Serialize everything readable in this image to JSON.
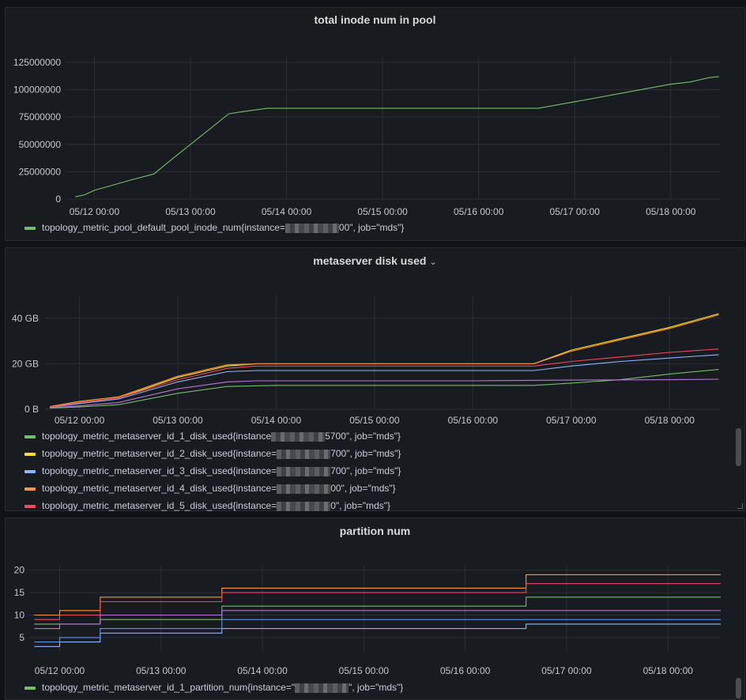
{
  "panels": [
    {
      "title": "total inode num in pool",
      "legend": [
        {
          "pre": "topology_metric_pool_default_pool_inode_num{instance=",
          "post": "00\", job=\"mds\"}",
          "color": "#73bf69"
        }
      ]
    },
    {
      "title": "metaserver disk used",
      "caret": "⌄",
      "legend": [
        {
          "pre": "topology_metric_metaserver_id_1_disk_used{instance",
          "post": "5700\", job=\"mds\"}",
          "color": "#73bf69"
        },
        {
          "pre": "topology_metric_metaserver_id_2_disk_used{instance=",
          "post": "700\", job=\"mds\"}",
          "color": "#fade2a"
        },
        {
          "pre": "topology_metric_metaserver_id_3_disk_used{instance=",
          "post": "700\", job=\"mds\"}",
          "color": "#8ab8ff"
        },
        {
          "pre": "topology_metric_metaserver_id_4_disk_used{instance=",
          "post": "00\", job=\"mds\"}",
          "color": "#ff9830"
        },
        {
          "pre": "topology_metric_metaserver_id_5_disk_used{instance=",
          "post": "0\", job=\"mds\"}",
          "color": "#f2495c"
        }
      ]
    },
    {
      "title": "partition num",
      "legend": [
        {
          "pre": "topology_metric_metaserver_id_1_partition_num{instance=\"",
          "post": "\", job=\"mds\"}",
          "color": "#73bf69"
        }
      ]
    }
  ],
  "chart_data": [
    {
      "type": "line",
      "title": "total inode num in pool",
      "x_ticks": [
        "05/12 00:00",
        "05/13 00:00",
        "05/14 00:00",
        "05/15 00:00",
        "05/16 00:00",
        "05/17 00:00",
        "05/18 00:00"
      ],
      "y_ticks": [
        "0",
        "25000000",
        "50000000",
        "75000000",
        "100000000",
        "125000000"
      ],
      "xlim": [
        -0.3,
        6.52
      ],
      "ylim": [
        0,
        130000000
      ],
      "series": [
        {
          "color": "#73bf69",
          "x": [
            -0.2,
            -0.1,
            0.0,
            0.2,
            0.4,
            0.62,
            0.8,
            1.0,
            1.2,
            1.4,
            1.55,
            1.8,
            2.5,
            3.0,
            4.0,
            4.0,
            4.62,
            5.0,
            5.5,
            6.0,
            6.2,
            6.4,
            6.5
          ],
          "y": [
            2000000,
            4000000,
            8000000,
            13000000,
            18000000,
            23000000,
            36000000,
            50000000,
            64000000,
            78000000,
            80000000,
            83000000,
            83000000,
            83000000,
            83000000,
            83000000,
            83000000,
            89000000,
            97000000,
            105000000,
            107000000,
            111000000,
            112000000
          ]
        }
      ]
    },
    {
      "type": "line",
      "title": "metaserver disk used",
      "x_ticks": [
        "05/12 00:00",
        "05/13 00:00",
        "05/14 00:00",
        "05/15 00:00",
        "05/16 00:00",
        "05/17 00:00",
        "05/18 00:00"
      ],
      "y_ticks": [
        "0 B",
        "20 GB",
        "40 GB"
      ],
      "xlim": [
        -0.35,
        6.52
      ],
      "ylim": [
        0,
        50
      ],
      "series": [
        {
          "name": "topology_metric_metaserver_id_1_disk_used",
          "color": "#73bf69",
          "x": [
            -0.3,
            0.0,
            0.4,
            1.0,
            1.5,
            2.0,
            3.0,
            4.0,
            4.62,
            5.0,
            5.5,
            6.0,
            6.5
          ],
          "y": [
            0.5,
            1.0,
            2.0,
            7.0,
            10.0,
            10.5,
            10.5,
            10.5,
            10.5,
            11.5,
            13.0,
            15.5,
            17.5
          ]
        },
        {
          "name": "topology_metric_metaserver_id_2_disk_used",
          "color": "#fade2a",
          "x": [
            -0.3,
            0.0,
            0.4,
            1.0,
            1.5,
            1.8,
            2.0,
            3.0,
            4.0,
            4.62,
            5.0,
            5.5,
            6.0,
            6.5
          ],
          "y": [
            1.0,
            3.0,
            5.0,
            14.0,
            19.0,
            20.0,
            20.0,
            20.0,
            20.0,
            20.0,
            26.0,
            31.0,
            36.0,
            42.0
          ]
        },
        {
          "name": "topology_metric_metaserver_id_3_disk_used",
          "color": "#8ab8ff",
          "x": [
            -0.3,
            0.0,
            0.4,
            1.0,
            1.5,
            1.8,
            2.0,
            3.0,
            4.0,
            4.62,
            5.0,
            5.5,
            6.0,
            6.5
          ],
          "y": [
            0.8,
            2.5,
            4.5,
            12.0,
            16.5,
            17.0,
            17.0,
            17.0,
            17.0,
            17.0,
            19.0,
            21.0,
            22.5,
            24.0
          ]
        },
        {
          "name": "topology_metric_metaserver_id_4_disk_used",
          "color": "#ff9830",
          "x": [
            -0.3,
            0.0,
            0.4,
            1.0,
            1.5,
            1.8,
            2.0,
            3.0,
            4.0,
            4.62,
            5.0,
            5.5,
            6.0,
            6.5
          ],
          "y": [
            1.2,
            3.5,
            5.5,
            14.5,
            19.5,
            20.0,
            20.0,
            20.0,
            20.0,
            20.0,
            25.5,
            30.5,
            35.5,
            41.5
          ]
        },
        {
          "name": "topology_metric_metaserver_id_5_disk_used",
          "color": "#f2495c",
          "x": [
            -0.3,
            0.0,
            0.4,
            1.0,
            1.5,
            1.8,
            2.0,
            3.0,
            4.0,
            4.62,
            5.0,
            5.5,
            6.0,
            6.5
          ],
          "y": [
            0.9,
            3.0,
            5.0,
            13.0,
            18.0,
            19.0,
            19.0,
            19.0,
            19.0,
            19.0,
            21.0,
            23.0,
            25.0,
            26.5
          ]
        },
        {
          "name": "",
          "color": "#b877d9",
          "x": [
            -0.3,
            0.0,
            0.4,
            1.0,
            1.5,
            1.8,
            2.0,
            3.0,
            4.0,
            5.0,
            6.0,
            6.5
          ],
          "y": [
            0.6,
            1.5,
            3.0,
            9.0,
            12.0,
            12.5,
            12.5,
            12.5,
            12.5,
            12.8,
            13.0,
            13.2
          ]
        }
      ]
    },
    {
      "type": "line",
      "title": "partition num",
      "x_ticks": [
        "05/12 00:00",
        "05/13 00:00",
        "05/14 00:00",
        "05/15 00:00",
        "05/16 00:00",
        "05/17 00:00",
        "05/18 00:00"
      ],
      "y_ticks": [
        "5",
        "10",
        "15",
        "20"
      ],
      "xlim": [
        -0.3,
        6.52
      ],
      "ylim": [
        2,
        21
      ],
      "step": true,
      "series": [
        {
          "color": "#73bf69",
          "x": [
            -0.25,
            0.0,
            0.4,
            1.6,
            4.6,
            6.5
          ],
          "y": [
            8,
            8,
            9,
            12,
            14,
            14
          ]
        },
        {
          "color": "#ff9830",
          "x": [
            -0.25,
            0.0,
            0.4,
            1.6,
            4.6,
            6.5
          ],
          "y": [
            10,
            11,
            14,
            16,
            19,
            19
          ]
        },
        {
          "color": "#f2495c",
          "x": [
            -0.25,
            0.0,
            0.4,
            1.6,
            4.6,
            6.5
          ],
          "y": [
            9,
            10,
            13,
            15,
            17,
            17
          ]
        },
        {
          "color": "#8ab8ff",
          "x": [
            -0.25,
            0.0,
            0.4,
            1.6,
            4.6,
            6.5
          ],
          "y": [
            3,
            4,
            6,
            7,
            8,
            8
          ]
        },
        {
          "color": "#b877d9",
          "x": [
            -0.25,
            0.0,
            0.4,
            1.6,
            4.6,
            6.5
          ],
          "y": [
            7,
            8,
            10,
            11,
            11,
            11
          ]
        },
        {
          "color": "#5794f2",
          "x": [
            -0.25,
            0.0,
            0.4,
            1.6,
            4.6,
            6.5
          ],
          "y": [
            4,
            5,
            7,
            9,
            9,
            9
          ]
        }
      ]
    }
  ]
}
